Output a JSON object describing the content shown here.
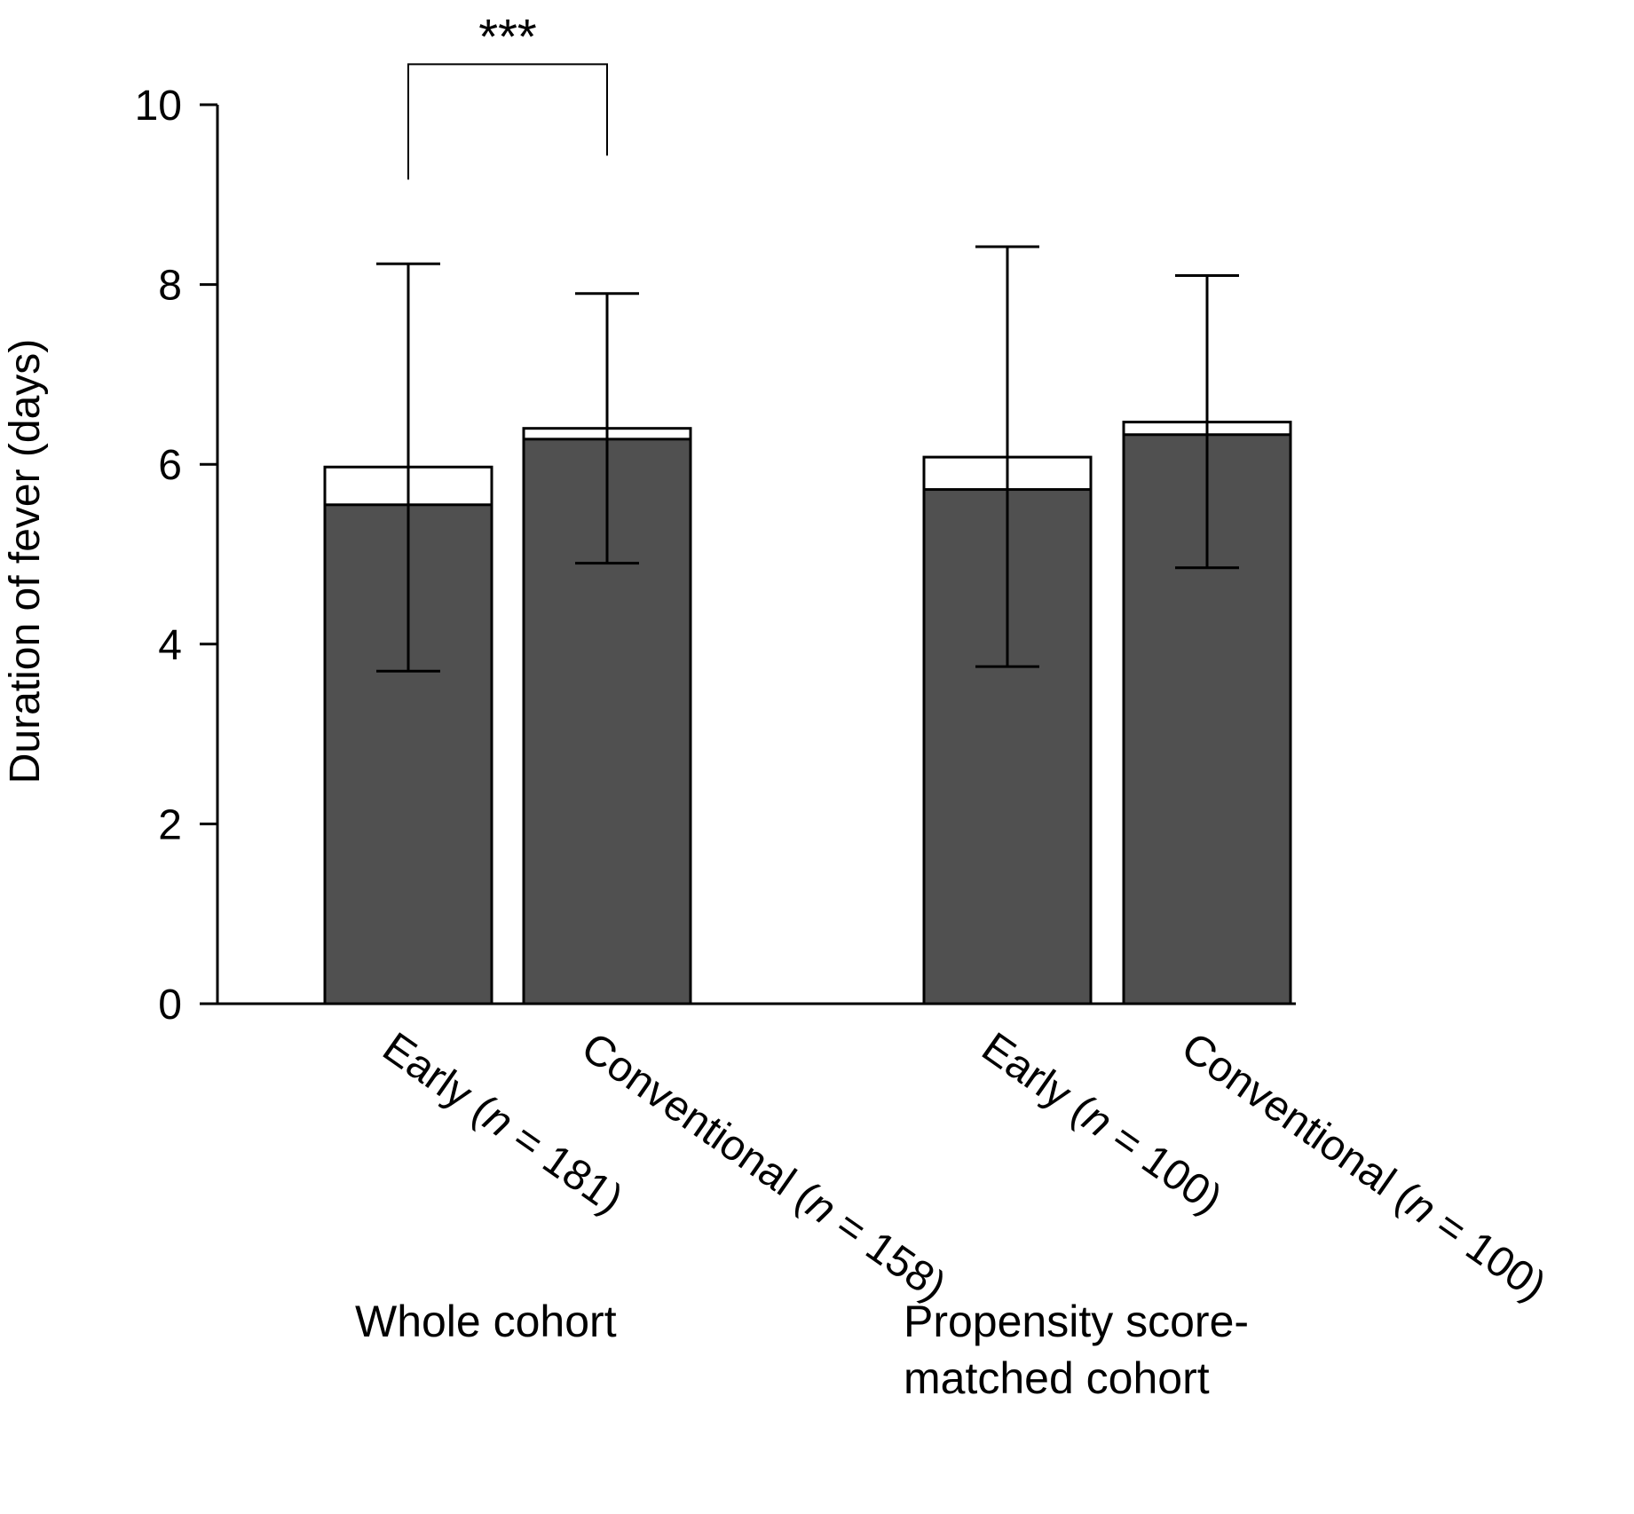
{
  "chart_data": {
    "type": "bar",
    "ylabel": "Duration of fever (days)",
    "ylim": [
      0,
      10
    ],
    "yticks": [
      0,
      2,
      4,
      6,
      8,
      10
    ],
    "grid": false,
    "colors": {
      "median_fill": "#505050",
      "mean_fill": "#ffffff",
      "outline": "#000000"
    },
    "categories": [
      {
        "prefix": "Early (",
        "italic": "n",
        "suffix": " = 181)",
        "group": 0,
        "median": 5.55,
        "mean": 5.97,
        "err_low": 3.7,
        "err_high": 8.23
      },
      {
        "prefix": "Conventional (",
        "italic": "n",
        "suffix": " = 158)",
        "group": 0,
        "median": 6.28,
        "mean": 6.4,
        "err_low": 4.9,
        "err_high": 7.9
      },
      {
        "prefix": "Early (",
        "italic": "n",
        "suffix": " = 100)",
        "group": 1,
        "median": 5.72,
        "mean": 6.08,
        "err_low": 3.75,
        "err_high": 8.42
      },
      {
        "prefix": "Conventional (",
        "italic": "n",
        "suffix": " = 100)",
        "group": 1,
        "median": 6.33,
        "mean": 6.47,
        "err_low": 4.85,
        "err_high": 8.1
      }
    ],
    "groups": [
      {
        "lines": [
          "Whole cohort"
        ]
      },
      {
        "lines": [
          "Propensity score-",
          "matched cohort"
        ]
      }
    ],
    "annotations": [
      {
        "text": "***",
        "from": 0,
        "to": 1,
        "y": 10.45
      }
    ]
  }
}
